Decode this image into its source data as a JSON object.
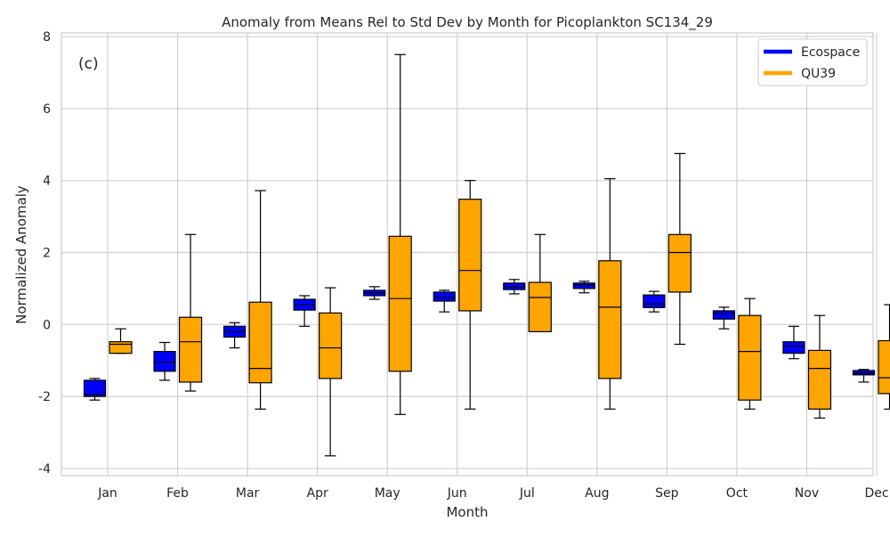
{
  "chart_data": {
    "type": "box",
    "title": "Anomaly from Means Rel to Std Dev by Month for Picoplankton SC134_29",
    "panel_label": "(c)",
    "xlabel": "Month",
    "ylabel": "Normalized Anomaly",
    "ylim": [
      -4.2,
      8.1
    ],
    "yticks": [
      -4,
      -2,
      0,
      2,
      4,
      6,
      8
    ],
    "grid": true,
    "legend_position": "top-right",
    "categories": [
      "Jan",
      "Feb",
      "Mar",
      "Apr",
      "May",
      "Jun",
      "Jul",
      "Aug",
      "Sep",
      "Oct",
      "Nov",
      "Dec"
    ],
    "series": [
      {
        "name": "Ecospace",
        "color": "#0000ff",
        "boxes": [
          {
            "min": -2.1,
            "q1": -2.0,
            "median": -1.95,
            "q3": -1.55,
            "max": -1.5
          },
          {
            "min": -1.55,
            "q1": -1.3,
            "median": -1.05,
            "q3": -0.75,
            "max": -0.5
          },
          {
            "min": -0.65,
            "q1": -0.35,
            "median": -0.2,
            "q3": -0.05,
            "max": 0.05
          },
          {
            "min": -0.05,
            "q1": 0.4,
            "median": 0.55,
            "q3": 0.7,
            "max": 0.8
          },
          {
            "min": 0.7,
            "q1": 0.8,
            "median": 0.88,
            "q3": 0.95,
            "max": 1.05
          },
          {
            "min": 0.35,
            "q1": 0.65,
            "median": 0.75,
            "q3": 0.9,
            "max": 0.95
          },
          {
            "min": 0.85,
            "q1": 0.97,
            "median": 1.05,
            "q3": 1.15,
            "max": 1.25
          },
          {
            "min": 0.88,
            "q1": 1.0,
            "median": 1.1,
            "q3": 1.15,
            "max": 1.2
          },
          {
            "min": 0.35,
            "q1": 0.47,
            "median": 0.57,
            "q3": 0.82,
            "max": 0.92
          },
          {
            "min": -0.12,
            "q1": 0.15,
            "median": 0.3,
            "q3": 0.38,
            "max": 0.48
          },
          {
            "min": -0.95,
            "q1": -0.8,
            "median": -0.6,
            "q3": -0.48,
            "max": -0.05
          },
          {
            "min": -1.6,
            "q1": -1.4,
            "median": -1.35,
            "q3": -1.28,
            "max": -1.25
          }
        ]
      },
      {
        "name": "QU39",
        "color": "#ffa500",
        "boxes": [
          {
            "min": -0.8,
            "q1": -0.8,
            "median": -0.55,
            "q3": -0.48,
            "max": -0.12
          },
          {
            "min": -1.85,
            "q1": -1.6,
            "median": -0.48,
            "q3": 0.2,
            "max": 2.5
          },
          {
            "min": -2.35,
            "q1": -1.62,
            "median": -1.22,
            "q3": 0.62,
            "max": 3.72
          },
          {
            "min": -3.65,
            "q1": -1.5,
            "median": -0.65,
            "q3": 0.32,
            "max": 1.02
          },
          {
            "min": -2.5,
            "q1": -1.3,
            "median": 0.72,
            "q3": 2.45,
            "max": 7.5
          },
          {
            "min": -2.35,
            "q1": 0.38,
            "median": 1.5,
            "q3": 3.48,
            "max": 4.0
          },
          {
            "min": -0.2,
            "q1": -0.2,
            "median": 0.75,
            "q3": 1.17,
            "max": 2.5
          },
          {
            "min": -2.35,
            "q1": -1.5,
            "median": 0.48,
            "q3": 1.77,
            "max": 4.05
          },
          {
            "min": -0.55,
            "q1": 0.9,
            "median": 2.0,
            "q3": 2.5,
            "max": 4.75
          },
          {
            "min": -2.35,
            "q1": -2.1,
            "median": -0.75,
            "q3": 0.25,
            "max": 0.72
          },
          {
            "min": -2.6,
            "q1": -2.35,
            "median": -1.22,
            "q3": -0.72,
            "max": 0.25
          },
          {
            "min": -2.35,
            "q1": -1.92,
            "median": -1.48,
            "q3": -0.45,
            "max": 0.55
          }
        ]
      }
    ]
  }
}
